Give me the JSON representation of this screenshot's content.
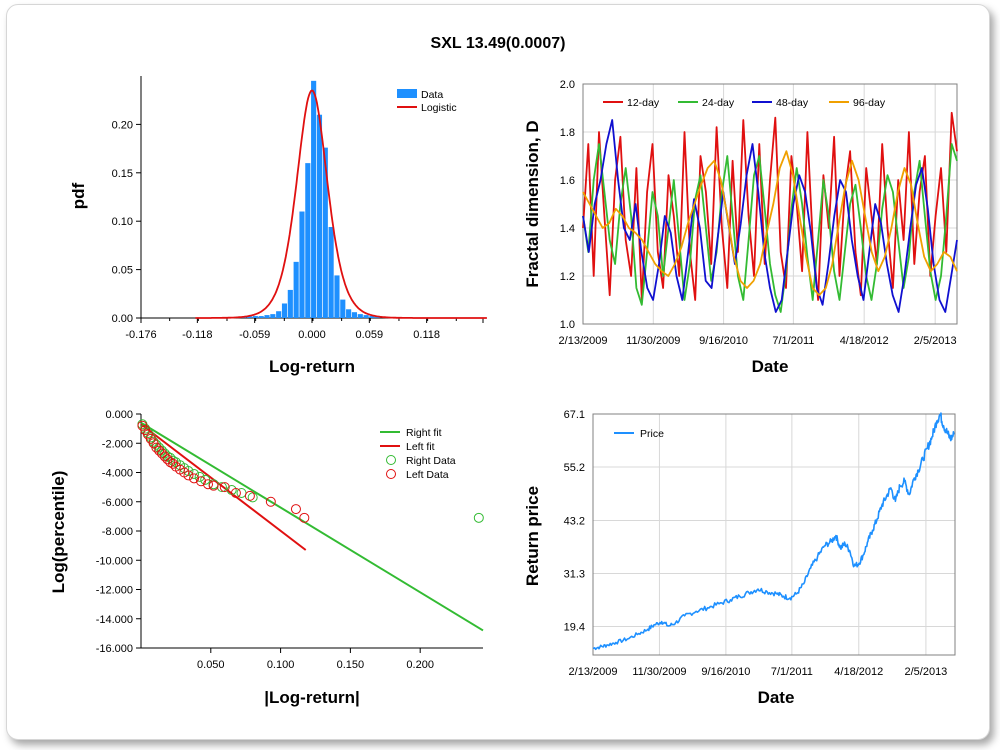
{
  "page": {
    "title": "SXL 13.49(0.0007)"
  },
  "chart_data": [
    {
      "id": "pdf",
      "type": "bar",
      "xlabel": "Log-return",
      "ylabel": "pdf",
      "xlim": [
        -0.176,
        0.176
      ],
      "ylim": [
        0,
        0.25
      ],
      "xticks": [
        "-0.176",
        "-0.118",
        "-0.059",
        "0.000",
        "0.059",
        "0.118"
      ],
      "xtick_values": [
        -0.176,
        -0.118,
        -0.059,
        0.0,
        0.059,
        0.118
      ],
      "yticks": [
        "0.00",
        "0.05",
        "0.10",
        "0.15",
        "0.20"
      ],
      "ytick_values": [
        0,
        0.05,
        0.1,
        0.15,
        0.2
      ],
      "colors": {
        "data": "#1e90ff",
        "logistic": "#e01010"
      },
      "legend": [
        {
          "label": "Data",
          "kind": "bar"
        },
        {
          "label": "Logistic",
          "kind": "line"
        }
      ],
      "bin_width": 0.0059,
      "bins": [
        [
          -0.106,
          0.0005
        ],
        [
          -0.094,
          0.0005
        ],
        [
          -0.082,
          0.001
        ],
        [
          -0.07,
          0.001
        ],
        [
          -0.064,
          0.0015
        ],
        [
          -0.058,
          0.002
        ],
        [
          -0.052,
          0.002
        ],
        [
          -0.046,
          0.003
        ],
        [
          -0.04,
          0.004
        ],
        [
          -0.034,
          0.007
        ],
        [
          -0.028,
          0.015
        ],
        [
          -0.022,
          0.029
        ],
        [
          -0.016,
          0.058
        ],
        [
          -0.01,
          0.11
        ],
        [
          -0.004,
          0.16
        ],
        [
          0.002,
          0.245
        ],
        [
          0.008,
          0.21
        ],
        [
          0.014,
          0.176
        ],
        [
          0.02,
          0.094
        ],
        [
          0.026,
          0.044
        ],
        [
          0.032,
          0.019
        ],
        [
          0.038,
          0.009
        ],
        [
          0.044,
          0.006
        ],
        [
          0.05,
          0.004
        ],
        [
          0.056,
          0.003
        ],
        [
          0.062,
          0.002
        ],
        [
          0.068,
          0.0015
        ],
        [
          0.076,
          0.001
        ],
        [
          0.09,
          0.0007
        ],
        [
          0.102,
          0.0005
        ]
      ],
      "logistic": {
        "mu": 0.0,
        "s": 0.0106,
        "peak": 0.235
      }
    },
    {
      "id": "fractal",
      "type": "line",
      "xlabel": "Date",
      "ylabel": "Fractal dimension, D",
      "xlim": [
        0,
        1543
      ],
      "ylim": [
        1.0,
        2.0
      ],
      "xticks": [
        "2/13/2009",
        "11/30/2009",
        "9/16/2010",
        "7/1/2011",
        "4/18/2012",
        "2/5/2013"
      ],
      "xtick_values": [
        0,
        290,
        580,
        868,
        1160,
        1453
      ],
      "yticks": [
        "1.0",
        "1.2",
        "1.4",
        "1.6",
        "1.8",
        "2.0"
      ],
      "ytick_values": [
        1.0,
        1.2,
        1.4,
        1.6,
        1.8,
        2.0
      ],
      "series": [
        {
          "name": "12-day",
          "color": "#e01010",
          "values": [
            1.4,
            1.75,
            1.2,
            1.8,
            1.45,
            1.12,
            1.6,
            1.78,
            1.35,
            1.2,
            1.65,
            1.1,
            1.55,
            1.75,
            1.3,
            1.15,
            1.62,
            1.45,
            1.2,
            1.8,
            1.3,
            1.1,
            1.7,
            1.55,
            1.25,
            1.82,
            1.4,
            1.15,
            1.68,
            1.3,
            1.85,
            1.45,
            1.2,
            1.75,
            1.25,
            1.6,
            1.86,
            1.3,
            1.15,
            1.7,
            1.5,
            1.22,
            1.8,
            1.35,
            1.1,
            1.62,
            1.4,
            1.78,
            1.2,
            1.55,
            1.72,
            1.3,
            1.12,
            1.65,
            1.45,
            1.25,
            1.75,
            1.4,
            1.15,
            1.6,
            1.35,
            1.8,
            1.25,
            1.55,
            1.7,
            1.2,
            1.45,
            1.65,
            1.3,
            1.88,
            1.72
          ]
        },
        {
          "name": "24-day",
          "color": "#33bb33",
          "values": [
            1.45,
            1.3,
            1.6,
            1.75,
            1.55,
            1.35,
            1.25,
            1.5,
            1.65,
            1.45,
            1.15,
            1.08,
            1.3,
            1.55,
            1.45,
            1.2,
            1.4,
            1.6,
            1.35,
            1.1,
            1.25,
            1.52,
            1.62,
            1.4,
            1.18,
            1.3,
            1.55,
            1.7,
            1.45,
            1.2,
            1.1,
            1.35,
            1.62,
            1.7,
            1.48,
            1.25,
            1.12,
            1.05,
            1.22,
            1.48,
            1.65,
            1.5,
            1.28,
            1.1,
            1.35,
            1.6,
            1.45,
            1.22,
            1.1,
            1.3,
            1.5,
            1.58,
            1.4,
            1.2,
            1.1,
            1.25,
            1.48,
            1.62,
            1.55,
            1.35,
            1.15,
            1.28,
            1.55,
            1.68,
            1.45,
            1.22,
            1.1,
            1.2,
            1.45,
            1.75,
            1.68
          ]
        },
        {
          "name": "48-day",
          "color": "#1010d0",
          "values": [
            1.45,
            1.3,
            1.5,
            1.6,
            1.75,
            1.85,
            1.6,
            1.4,
            1.35,
            1.5,
            1.3,
            1.15,
            1.1,
            1.25,
            1.45,
            1.38,
            1.2,
            1.1,
            1.3,
            1.52,
            1.4,
            1.18,
            1.15,
            1.35,
            1.55,
            1.4,
            1.25,
            1.42,
            1.62,
            1.75,
            1.55,
            1.3,
            1.15,
            1.05,
            1.1,
            1.3,
            1.5,
            1.62,
            1.55,
            1.38,
            1.15,
            1.08,
            1.25,
            1.45,
            1.6,
            1.55,
            1.35,
            1.2,
            1.1,
            1.3,
            1.5,
            1.42,
            1.25,
            1.12,
            1.05,
            1.2,
            1.4,
            1.58,
            1.65,
            1.48,
            1.25,
            1.1,
            1.05,
            1.2,
            1.35
          ]
        },
        {
          "name": "96-day",
          "color": "#f0a000",
          "values": [
            1.55,
            1.5,
            1.45,
            1.4,
            1.42,
            1.48,
            1.45,
            1.4,
            1.38,
            1.35,
            1.3,
            1.25,
            1.22,
            1.2,
            1.25,
            1.32,
            1.42,
            1.5,
            1.58,
            1.65,
            1.68,
            1.6,
            1.45,
            1.28,
            1.18,
            1.15,
            1.18,
            1.25,
            1.38,
            1.5,
            1.65,
            1.72,
            1.62,
            1.45,
            1.28,
            1.15,
            1.12,
            1.15,
            1.25,
            1.42,
            1.58,
            1.68,
            1.6,
            1.45,
            1.3,
            1.22,
            1.28,
            1.4,
            1.55,
            1.65,
            1.58,
            1.42,
            1.28,
            1.22,
            1.25,
            1.3,
            1.28,
            1.22
          ]
        }
      ]
    },
    {
      "id": "tail",
      "type": "scatter",
      "xlabel": "|Log-return|",
      "ylabel": "Log(percentile)",
      "xlim": [
        0,
        0.245
      ],
      "ylim": [
        -16,
        0
      ],
      "xticks": [
        "0.050",
        "0.100",
        "0.150",
        "0.200"
      ],
      "xtick_values": [
        0.05,
        0.1,
        0.15,
        0.2
      ],
      "yticks": [
        "0.000",
        "-2.000",
        "-4.000",
        "-6.000",
        "-8.000",
        "-10.000",
        "-12.000",
        "-14.000",
        "-16.000"
      ],
      "ytick_values": [
        0,
        -2,
        -4,
        -6,
        -8,
        -10,
        -12,
        -14,
        -16
      ],
      "right_fit": {
        "name": "Right fit",
        "color": "#33bb33",
        "points": [
          [
            0.0,
            -0.6
          ],
          [
            0.245,
            -14.8
          ]
        ]
      },
      "left_fit": {
        "name": "Left fit",
        "color": "#e01010",
        "points": [
          [
            0.0,
            -0.7
          ],
          [
            0.118,
            -9.3
          ]
        ]
      },
      "right_data": {
        "name": "Right Data",
        "color": "#33bb33",
        "points": [
          [
            0.001,
            -0.7
          ],
          [
            0.003,
            -1.0
          ],
          [
            0.005,
            -1.3
          ],
          [
            0.007,
            -1.6
          ],
          [
            0.009,
            -1.9
          ],
          [
            0.011,
            -2.1
          ],
          [
            0.013,
            -2.3
          ],
          [
            0.015,
            -2.5
          ],
          [
            0.017,
            -2.7
          ],
          [
            0.019,
            -2.9
          ],
          [
            0.021,
            -3.0
          ],
          [
            0.023,
            -3.2
          ],
          [
            0.025,
            -3.3
          ],
          [
            0.028,
            -3.5
          ],
          [
            0.031,
            -3.7
          ],
          [
            0.034,
            -3.9
          ],
          [
            0.038,
            -4.1
          ],
          [
            0.042,
            -4.3
          ],
          [
            0.046,
            -4.5
          ],
          [
            0.052,
            -4.8
          ],
          [
            0.058,
            -5.0
          ],
          [
            0.065,
            -5.2
          ],
          [
            0.072,
            -5.4
          ],
          [
            0.08,
            -5.7
          ],
          [
            0.242,
            -7.1
          ]
        ]
      },
      "left_data": {
        "name": "Left Data",
        "color": "#e01010",
        "points": [
          [
            0.001,
            -0.8
          ],
          [
            0.003,
            -1.1
          ],
          [
            0.005,
            -1.4
          ],
          [
            0.007,
            -1.7
          ],
          [
            0.009,
            -2.0
          ],
          [
            0.011,
            -2.3
          ],
          [
            0.013,
            -2.5
          ],
          [
            0.015,
            -2.7
          ],
          [
            0.017,
            -2.9
          ],
          [
            0.019,
            -3.1
          ],
          [
            0.021,
            -3.3
          ],
          [
            0.023,
            -3.4
          ],
          [
            0.025,
            -3.6
          ],
          [
            0.028,
            -3.8
          ],
          [
            0.031,
            -4.0
          ],
          [
            0.034,
            -4.2
          ],
          [
            0.038,
            -4.4
          ],
          [
            0.043,
            -4.6
          ],
          [
            0.048,
            -4.8
          ],
          [
            0.052,
            -4.9
          ],
          [
            0.06,
            -5.0
          ],
          [
            0.068,
            -5.4
          ],
          [
            0.078,
            -5.6
          ],
          [
            0.093,
            -6.0
          ],
          [
            0.111,
            -6.5
          ],
          [
            0.117,
            -7.1
          ]
        ]
      }
    },
    {
      "id": "price",
      "type": "line",
      "xlabel": "Date",
      "ylabel": "Return price",
      "xlim": [
        0,
        1580
      ],
      "ylim": [
        13.0,
        67.1
      ],
      "xticks": [
        "2/13/2009",
        "11/30/2009",
        "9/16/2010",
        "7/1/2011",
        "4/18/2012",
        "2/5/2013"
      ],
      "xtick_values": [
        0,
        290,
        580,
        868,
        1160,
        1453
      ],
      "yticks": [
        "19.4",
        "31.3",
        "43.2",
        "55.2",
        "67.1"
      ],
      "ytick_values": [
        19.4,
        31.3,
        43.2,
        55.2,
        67.1
      ],
      "series": [
        {
          "name": "Price",
          "color": "#1e90ff",
          "points": [
            [
              0,
              14.5
            ],
            [
              30,
              14.8
            ],
            [
              60,
              15.2
            ],
            [
              100,
              15.8
            ],
            [
              150,
              16.6
            ],
            [
              200,
              17.8
            ],
            [
              240,
              18.8
            ],
            [
              270,
              19.8
            ],
            [
              300,
              20.5
            ],
            [
              330,
              19.5
            ],
            [
              360,
              20.2
            ],
            [
              400,
              21.8
            ],
            [
              450,
              22.8
            ],
            [
              500,
              23.6
            ],
            [
              550,
              24.5
            ],
            [
              600,
              25.4
            ],
            [
              640,
              26.2
            ],
            [
              680,
              27.0
            ],
            [
              720,
              27.8
            ],
            [
              760,
              27.2
            ],
            [
              800,
              26.8
            ],
            [
              830,
              26.2
            ],
            [
              860,
              25.8
            ],
            [
              890,
              26.8
            ],
            [
              920,
              29.0
            ],
            [
              950,
              32.5
            ],
            [
              980,
              35.0
            ],
            [
              1010,
              37.5
            ],
            [
              1040,
              38.5
            ],
            [
              1060,
              39.8
            ],
            [
              1080,
              37.0
            ],
            [
              1100,
              38.0
            ],
            [
              1120,
              36.5
            ],
            [
              1140,
              33.0
            ],
            [
              1160,
              33.5
            ],
            [
              1180,
              35.5
            ],
            [
              1200,
              38.5
            ],
            [
              1220,
              41.0
            ],
            [
              1240,
              43.5
            ],
            [
              1260,
              46.5
            ],
            [
              1280,
              48.5
            ],
            [
              1300,
              50.5
            ],
            [
              1320,
              47.5
            ],
            [
              1340,
              51.0
            ],
            [
              1360,
              52.0
            ],
            [
              1380,
              49.0
            ],
            [
              1400,
              52.5
            ],
            [
              1420,
              54.5
            ],
            [
              1440,
              57.0
            ],
            [
              1460,
              59.5
            ],
            [
              1480,
              62.0
            ],
            [
              1500,
              65.5
            ],
            [
              1515,
              67.0
            ],
            [
              1530,
              64.5
            ],
            [
              1545,
              63.0
            ],
            [
              1560,
              61.5
            ],
            [
              1575,
              62.5
            ]
          ]
        }
      ]
    }
  ]
}
